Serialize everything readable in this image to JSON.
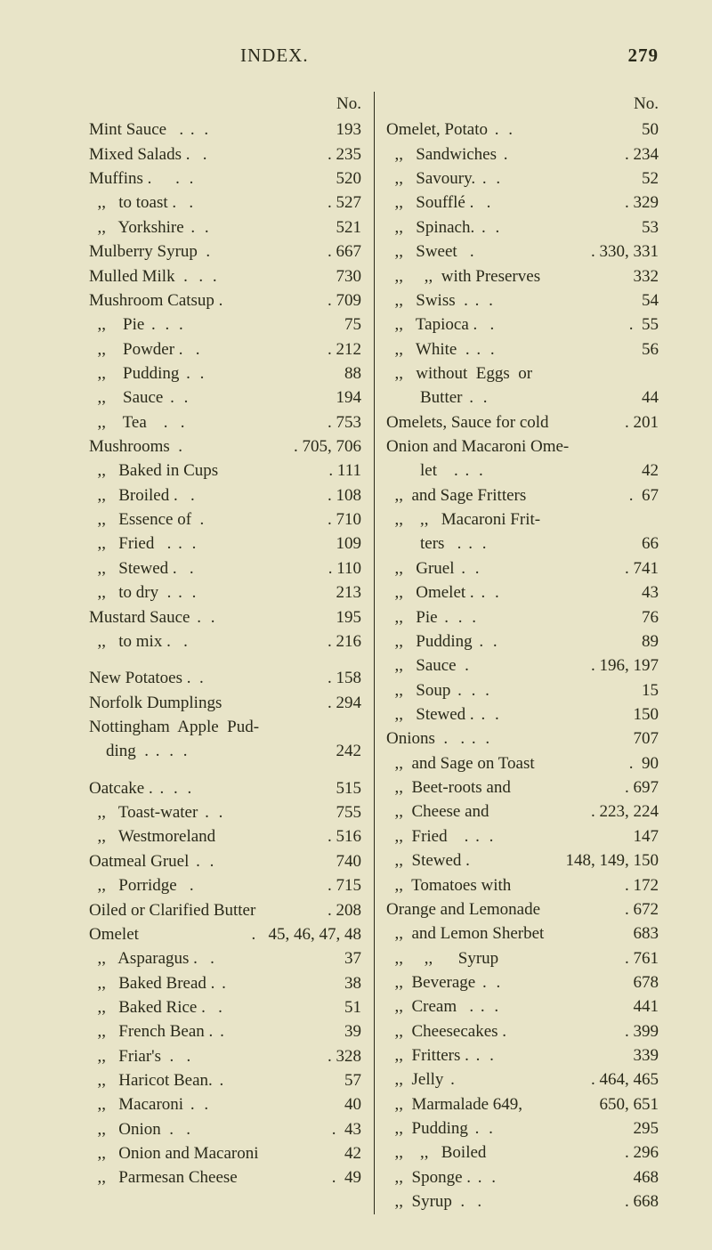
{
  "header": {
    "title": "INDEX.",
    "page": "279",
    "col_head": "No."
  },
  "left": [
    {
      "t": "row",
      "label": "Mint Sauce   .",
      "dots": ". .",
      "num": "193"
    },
    {
      "t": "row",
      "label": "Mixed Salads .   .",
      "dots": "",
      "num": ". 235"
    },
    {
      "t": "row",
      "label": "Muffins .    ",
      "dots": ". .",
      "num": "520"
    },
    {
      "t": "row",
      "label": "  ,,   to toast .   .",
      "dots": "",
      "num": ". 527"
    },
    {
      "t": "row",
      "label": "  ,,   Yorkshire",
      "dots": ". .",
      "num": "521"
    },
    {
      "t": "row",
      "label": "Mulberry Syrup  .",
      "dots": "",
      "num": ". 667"
    },
    {
      "t": "row",
      "label": "Mulled Milk  . ",
      "dots": ". .",
      "num": "730"
    },
    {
      "t": "row",
      "label": "Mushroom Catsup .",
      "dots": "",
      "num": ". 709"
    },
    {
      "t": "row",
      "label": "  ,,    Pie",
      "dots": ". . .",
      "num": "75"
    },
    {
      "t": "row",
      "label": "  ,,    Powder .   .",
      "dots": "",
      "num": ". 212"
    },
    {
      "t": "row",
      "label": "  ,,    Pudding",
      "dots": ". .",
      "num": "88"
    },
    {
      "t": "row",
      "label": "  ,,    Sauce",
      "dots": ". .",
      "num": "194"
    },
    {
      "t": "row",
      "label": "  ,,    Tea    .   .",
      "dots": "",
      "num": ". 753"
    },
    {
      "t": "row",
      "label": "Mushrooms  .",
      "dots": "",
      "num": ". 705, 706"
    },
    {
      "t": "row",
      "label": "  ,,   Baked in Cups",
      "dots": "",
      "num": ". 111"
    },
    {
      "t": "row",
      "label": "  ,,   Broiled .   .",
      "dots": "",
      "num": ". 108"
    },
    {
      "t": "row",
      "label": "  ,,   Essence of  .",
      "dots": "",
      "num": ". 710"
    },
    {
      "t": "row",
      "label": "  ,,   Fried   .",
      "dots": ". .",
      "num": "109"
    },
    {
      "t": "row",
      "label": "  ,,   Stewed .   .",
      "dots": "",
      "num": ". 110"
    },
    {
      "t": "row",
      "label": "  ,,   to dry  .",
      "dots": ". .",
      "num": "213"
    },
    {
      "t": "row",
      "label": "Mustard Sauce",
      "dots": ". .",
      "num": "195"
    },
    {
      "t": "row",
      "label": "  ,,   to mix .   .",
      "dots": "",
      "num": ". 216"
    },
    {
      "t": "gap"
    },
    {
      "t": "row",
      "label": "New Potatoes .  .",
      "dots": "",
      "num": ". 158"
    },
    {
      "t": "row",
      "label": "Norfolk Dumplings",
      "dots": "",
      "num": ". 294"
    },
    {
      "t": "plain",
      "text": "Nottingham  Apple  Pud-"
    },
    {
      "t": "row",
      "label": "    ding  .",
      "dots": ". . .",
      "num": "242"
    },
    {
      "t": "gap"
    },
    {
      "t": "row",
      "label": "Oatcake .",
      "dots": ". . .",
      "num": "515"
    },
    {
      "t": "row",
      "label": "  ,,   Toast-water",
      "dots": ". .",
      "num": "755"
    },
    {
      "t": "row",
      "label": "  ,,   Westmoreland",
      "dots": "",
      "num": ". 516"
    },
    {
      "t": "row",
      "label": "Oatmeal Gruel",
      "dots": ". .",
      "num": "740"
    },
    {
      "t": "row",
      "label": "  ,,   Porridge   .",
      "dots": "",
      "num": ". 715"
    },
    {
      "t": "row",
      "label": "Oiled or Clarified Butter",
      "dots": "",
      "num": ". 208"
    },
    {
      "t": "row",
      "label": "Omelet",
      "dots": "",
      "num": ".   45, 46, 47, 48"
    },
    {
      "t": "row",
      "label": "  ,,   Asparagus .   .",
      "dots": "",
      "num": "37"
    },
    {
      "t": "row",
      "label": "  ,,   Baked Bread .",
      "dots": ".",
      "num": "38"
    },
    {
      "t": "row",
      "label": "  ,,   Baked Rice .   .",
      "dots": "",
      "num": "51"
    },
    {
      "t": "row",
      "label": "  ,,   French Bean .",
      "dots": ".",
      "num": "39"
    },
    {
      "t": "row",
      "label": "  ,,   Friar's  .   .",
      "dots": "",
      "num": ". 328"
    },
    {
      "t": "row",
      "label": "  ,,   Haricot Bean.",
      "dots": ".",
      "num": "57"
    },
    {
      "t": "row",
      "label": "  ,,   Macaroni",
      "dots": ". .",
      "num": "40"
    },
    {
      "t": "row",
      "label": "  ,,   Onion  .   .",
      "dots": "",
      "num": ".  43"
    },
    {
      "t": "row",
      "label": "  ,,   Onion and Macaroni",
      "dots": "",
      "num": "42"
    },
    {
      "t": "row",
      "label": "  ,,   Parmesan Cheese",
      "dots": "",
      "num": ".  49"
    }
  ],
  "right": [
    {
      "t": "row",
      "label": "Omelet, Potato",
      "dots": ". .",
      "num": "50"
    },
    {
      "t": "row",
      "label": "  ,,   Sandwiches",
      "dots": ".",
      "num": ". 234"
    },
    {
      "t": "row",
      "label": "  ,,   Savoury.",
      "dots": ". .",
      "num": "52"
    },
    {
      "t": "row",
      "label": "  ,,   Soufflé .   .",
      "dots": "",
      "num": ". 329"
    },
    {
      "t": "row",
      "label": "  ,,   Spinach.",
      "dots": ". .",
      "num": "53"
    },
    {
      "t": "row",
      "label": "  ,,   Sweet   .",
      "dots": "",
      "num": ". 330, 331"
    },
    {
      "t": "row",
      "label": "  ,,     ,,  with Preserves",
      "dots": "",
      "num": "332"
    },
    {
      "t": "row",
      "label": "  ,,   Swiss  .",
      "dots": ". .",
      "num": "54"
    },
    {
      "t": "row",
      "label": "  ,,   Tapioca .   .",
      "dots": "",
      "num": ".  55"
    },
    {
      "t": "row",
      "label": "  ,,   White  .",
      "dots": ". .",
      "num": "56"
    },
    {
      "t": "plain",
      "text": "  ,,   without  Eggs  or"
    },
    {
      "t": "row",
      "label": "        Butter",
      "dots": ". .",
      "num": "44"
    },
    {
      "t": "row",
      "label": "Omelets, Sauce for cold",
      "dots": "",
      "num": ". 201"
    },
    {
      "t": "plain",
      "text": "Onion and Macaroni Ome-"
    },
    {
      "t": "row",
      "label": "        let    .",
      "dots": ". .",
      "num": "42"
    },
    {
      "t": "row",
      "label": "  ,,  and Sage Fritters",
      "dots": "",
      "num": ".  67"
    },
    {
      "t": "plain",
      "text": "  ,,    ,,   Macaroni Frit-"
    },
    {
      "t": "row",
      "label": "        ters   .",
      "dots": ". .",
      "num": "66"
    },
    {
      "t": "row",
      "label": "  ,,   Gruel",
      "dots": ". .",
      "num": ". 741"
    },
    {
      "t": "row",
      "label": "  ,,   Omelet .",
      "dots": ". .",
      "num": "43"
    },
    {
      "t": "row",
      "label": "  ,,   Pie",
      "dots": ". . .",
      "num": "76"
    },
    {
      "t": "row",
      "label": "  ,,   Pudding",
      "dots": ". .",
      "num": "89"
    },
    {
      "t": "row",
      "label": "  ,,   Sauce  .",
      "dots": "",
      "num": ". 196, 197"
    },
    {
      "t": "row",
      "label": "  ,,   Soup",
      "dots": ". . .",
      "num": "15"
    },
    {
      "t": "row",
      "label": "  ,,   Stewed .",
      "dots": ". .",
      "num": "150"
    },
    {
      "t": "row",
      "label": "Onions  .   .",
      "dots": ". .",
      "num": "707"
    },
    {
      "t": "row",
      "label": "  ,,  and Sage on Toast",
      "dots": "",
      "num": ".  90"
    },
    {
      "t": "row",
      "label": "  ,,  Beet-roots and",
      "dots": "",
      "num": ". 697"
    },
    {
      "t": "row",
      "label": "  ,,  Cheese and",
      "dots": "",
      "num": ". 223, 224"
    },
    {
      "t": "row",
      "label": "  ,,  Fried    .",
      "dots": ". .",
      "num": "147"
    },
    {
      "t": "row",
      "label": "  ,,  Stewed .",
      "dots": "",
      "num": "148, 149, 150"
    },
    {
      "t": "row",
      "label": "  ,,  Tomatoes with",
      "dots": "",
      "num": ". 172"
    },
    {
      "t": "row",
      "label": "Orange and Lemonade",
      "dots": "",
      "num": ". 672"
    },
    {
      "t": "row",
      "label": "  ,,  and Lemon Sherbet",
      "dots": "",
      "num": "683"
    },
    {
      "t": "row",
      "label": "  ,,     ,,      Syrup",
      "dots": "",
      "num": ". 761"
    },
    {
      "t": "row",
      "label": "  ,,  Beverage",
      "dots": ". .",
      "num": "678"
    },
    {
      "t": "row",
      "label": "  ,,  Cream   .",
      "dots": ". .",
      "num": "441"
    },
    {
      "t": "row",
      "label": "  ,,  Cheesecakes .",
      "dots": "",
      "num": ". 399"
    },
    {
      "t": "row",
      "label": "  ,,  Fritters .",
      "dots": ". .",
      "num": "339"
    },
    {
      "t": "row",
      "label": "  ,,  Jelly",
      "dots": ".",
      "num": ". 464, 465"
    },
    {
      "t": "row",
      "label": "  ,,  Marmalade 649,",
      "dots": "",
      "num": "650, 651"
    },
    {
      "t": "row",
      "label": "  ,,  Pudding",
      "dots": ". .",
      "num": "295"
    },
    {
      "t": "row",
      "label": "  ,,    ,,   Boiled",
      "dots": "",
      "num": ". 296"
    },
    {
      "t": "row",
      "label": "  ,,  Sponge .",
      "dots": ". .",
      "num": "468"
    },
    {
      "t": "row",
      "label": "  ,,  Syrup  .   .",
      "dots": "",
      "num": ". 668"
    }
  ]
}
